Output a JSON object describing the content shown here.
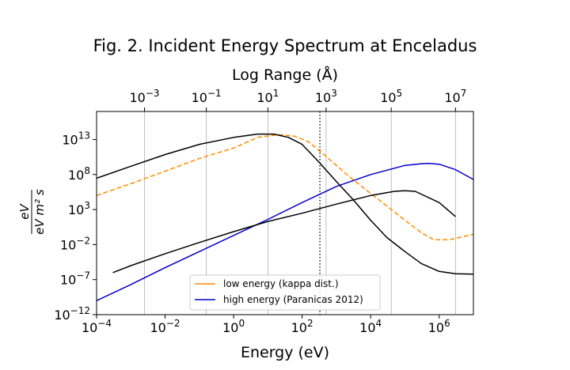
{
  "chart_data": {
    "type": "line",
    "title": "Fig. 2. Incident Energy Spectrum at Enceladus",
    "xlabel": "Energy (eV)",
    "ylabel_num": "eV",
    "ylabel_den": "eV m² s",
    "x2label": "Log Range (Å)",
    "x_scale": "log",
    "y_scale": "log",
    "xlim": [
      0.0001,
      10000000
    ],
    "ylim": [
      1e-12,
      1e+17
    ],
    "x_ticks": [
      {
        "value": 0.0001,
        "base": "10",
        "exp": "−4"
      },
      {
        "value": 0.01,
        "base": "10",
        "exp": "−2"
      },
      {
        "value": 1,
        "base": "10",
        "exp": "0"
      },
      {
        "value": 100,
        "base": "10",
        "exp": "2"
      },
      {
        "value": 10000,
        "base": "10",
        "exp": "4"
      },
      {
        "value": 1000000,
        "base": "10",
        "exp": "6"
      }
    ],
    "y_ticks": [
      {
        "value": 1e-12,
        "base": "10",
        "exp": "−12"
      },
      {
        "value": 1e-07,
        "base": "10",
        "exp": "−7"
      },
      {
        "value": 0.01,
        "base": "10",
        "exp": "−2"
      },
      {
        "value": 1000,
        "base": "10",
        "exp": "3"
      },
      {
        "value": 100000000.0,
        "base": "10",
        "exp": "8"
      },
      {
        "value": 10000000000000.0,
        "base": "10",
        "exp": "13"
      }
    ],
    "top_ticks": [
      {
        "energy": 0.0025,
        "base": "10",
        "exp": "−3"
      },
      {
        "energy": 0.16,
        "base": "10",
        "exp": "−1"
      },
      {
        "energy": 10,
        "base": "10",
        "exp": "1"
      },
      {
        "energy": 500,
        "base": "10",
        "exp": "3"
      },
      {
        "energy": 40000,
        "base": "10",
        "exp": "5"
      },
      {
        "energy": 3000000,
        "base": "10",
        "exp": "7"
      }
    ],
    "vline_energy": 330,
    "legend_position": "lower-center",
    "series": [
      {
        "name": "low energy (kappa dist.)",
        "color": "#ff8c00",
        "dash": true,
        "x": [
          0.0001,
          0.001,
          0.01,
          0.1,
          1,
          5,
          20,
          60,
          150,
          400,
          1000,
          3000,
          10000,
          30000,
          100000,
          300000,
          700000,
          2000000,
          10000000
        ],
        "y": [
          100000,
          5000000.0,
          300000000.0,
          20000000000.0,
          600000000000.0,
          20000000000000.0,
          50000000000000.0,
          30000000000000.0,
          5000000000000.0,
          100000000000.0,
          2000000000.0,
          20000000.0,
          200000,
          3000,
          30,
          0.5,
          0.05,
          0.05,
          0.3
        ]
      },
      {
        "name": "high energy (Paranicas 2012)",
        "color": "#0000cd",
        "dash": false,
        "x": [
          0.0001,
          0.001,
          0.01,
          0.1,
          1,
          10,
          100,
          1000,
          10000,
          100000,
          300000,
          500000,
          1000000,
          3000000,
          10000000
        ],
        "y": [
          1e-10,
          2e-08,
          5e-06,
          0.001,
          0.2,
          40,
          10000,
          2000000.0,
          100000000.0,
          2000000000.0,
          3500000000.0,
          4000000000.0,
          3000000000.0,
          500000000.0,
          20000000.0
        ]
      },
      {
        "name": "",
        "color": "#000000",
        "dash": false,
        "x": [
          0.0001,
          0.001,
          0.01,
          0.1,
          1,
          5,
          15,
          40,
          100,
          300,
          1000,
          3000,
          10000,
          30000,
          100000,
          300000,
          1000000,
          3000000,
          10000000
        ],
        "y": [
          30000000.0,
          1500000000.0,
          70000000000.0,
          2000000000000.0,
          20000000000000.0,
          60000000000000.0,
          60000000000000.0,
          20000000000000.0,
          2000000000000.0,
          7000000000.0,
          10000000.0,
          30000,
          30,
          0.1,
          0.001,
          2e-05,
          1.5e-06,
          7e-07,
          6e-07
        ]
      },
      {
        "name": "",
        "color": "#000000",
        "dash": false,
        "x": [
          0.0003,
          0.001,
          0.01,
          0.1,
          1,
          10,
          100,
          1000,
          10000,
          50000,
          100000,
          200000,
          1000000,
          3000000
        ],
        "y": [
          1e-06,
          1e-05,
          0.0005,
          0.02,
          0.7,
          20,
          300,
          6000,
          100000,
          400000,
          500000,
          400000,
          10000,
          100
        ]
      }
    ]
  }
}
